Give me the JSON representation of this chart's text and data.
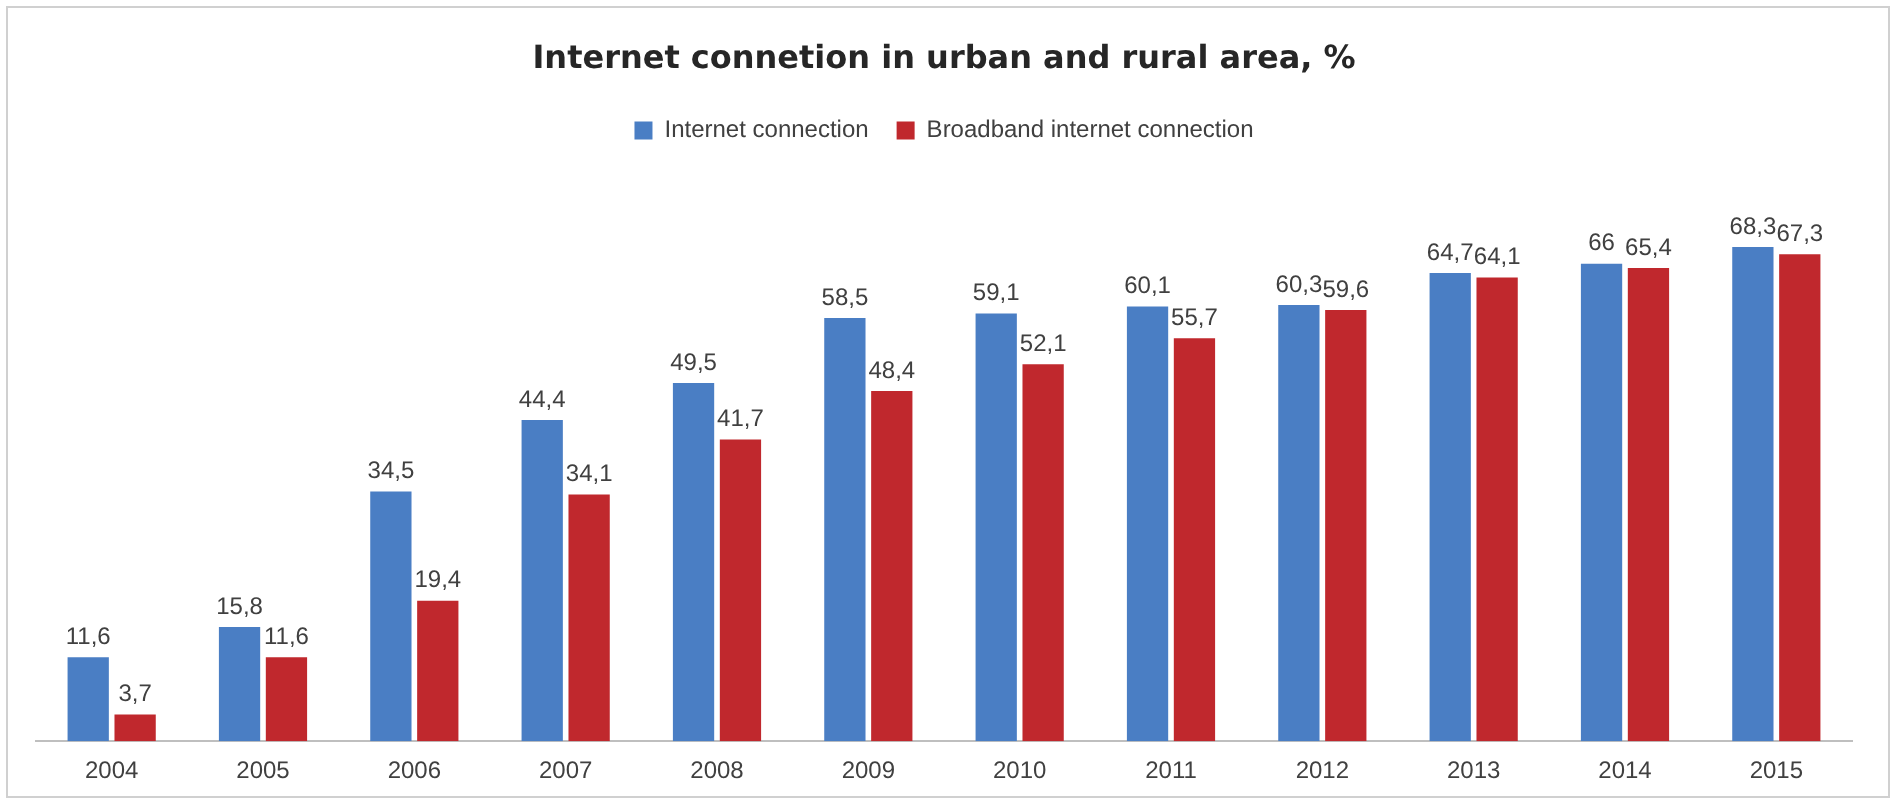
{
  "chart_data": {
    "type": "bar",
    "title": "Internet connetion in urban and rural area, %",
    "categories": [
      "2004",
      "2005",
      "2006",
      "2007",
      "2008",
      "2009",
      "2010",
      "2011",
      "2012",
      "2013",
      "2014",
      "2015"
    ],
    "series": [
      {
        "name": "Internet connection",
        "color": "#4a7ec4",
        "values": [
          11.6,
          15.8,
          34.5,
          44.4,
          49.5,
          58.5,
          59.1,
          60.1,
          60.3,
          64.7,
          66,
          68.3
        ],
        "value_labels": [
          "11,6",
          "15,8",
          "34,5",
          "44,4",
          "49,5",
          "58,5",
          "59,1",
          "60,1",
          "60,3",
          "64,7",
          "66",
          "68,3"
        ]
      },
      {
        "name": "Broadband internet connection",
        "color": "#c0282d",
        "values": [
          3.7,
          11.6,
          19.4,
          34.1,
          41.7,
          48.4,
          52.1,
          55.7,
          59.6,
          64.1,
          65.4,
          67.3
        ],
        "value_labels": [
          "3,7",
          "11,6",
          "19,4",
          "34,1",
          "41,7",
          "48,4",
          "52,1",
          "55,7",
          "59,6",
          "64,1",
          "65,4",
          "67,3"
        ]
      }
    ],
    "legend": "top",
    "grid": false,
    "tick_labels": "x"
  }
}
